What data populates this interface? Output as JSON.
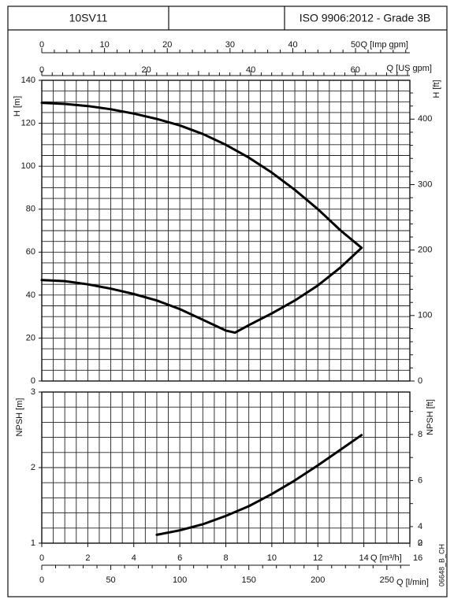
{
  "header": {
    "model": "10SV11",
    "standard": "ISO 9906:2012 - Grade 3B",
    "code": "06648_B_CH"
  },
  "chart_data": [
    {
      "type": "line",
      "panel": "head",
      "top_axis_imp_gpm": {
        "label": "Q [Imp gpm]",
        "tick_values": [
          0,
          10,
          20,
          30,
          40,
          50
        ],
        "tick_labels": [
          "0",
          "10",
          "20",
          "30",
          "40",
          "50"
        ]
      },
      "top_axis_us_gpm": {
        "label": "Q [US gpm]",
        "tick_values": [
          0,
          20,
          40,
          60
        ],
        "tick_labels": [
          "0",
          "20",
          "40",
          "60"
        ]
      },
      "ylabel": "H [m]",
      "ylim": [
        0,
        140
      ],
      "yticks": [
        "0",
        "20",
        "40",
        "60",
        "80",
        "100",
        "120",
        "140"
      ],
      "y2label": "H [ft]",
      "y2lim_ft": [
        0,
        459.3
      ],
      "y2ticks": [
        "0",
        "100",
        "200",
        "300",
        "400"
      ],
      "xlim": [
        0,
        16
      ],
      "grid": true,
      "series": [
        {
          "x": [
            0,
            1,
            2,
            3,
            4,
            5,
            6,
            7,
            8,
            9,
            10,
            11,
            12,
            13,
            13.9
          ],
          "y": [
            129.5,
            129,
            128,
            126.5,
            124.5,
            122,
            119,
            115,
            110,
            104,
            97,
            89,
            80,
            70,
            62
          ]
        },
        {
          "x": [
            0,
            1,
            2,
            3,
            4,
            5,
            6,
            7,
            8,
            8.4,
            9,
            10,
            11,
            12,
            13,
            13.9
          ],
          "y": [
            47,
            46.5,
            45,
            43,
            40.5,
            37.5,
            33.5,
            28.5,
            23.5,
            22.5,
            26,
            31.5,
            37.5,
            44.5,
            53,
            62
          ]
        }
      ]
    },
    {
      "type": "line",
      "panel": "npsh",
      "ylabel": "NPSH [m]",
      "ylim": [
        1,
        3
      ],
      "yticks": [
        "1",
        "2",
        "3"
      ],
      "y2label": "NPSH [ft]",
      "y2lim_ft": [
        3.281,
        9.843
      ],
      "y2ticks": [
        "0",
        "2",
        "4",
        "6",
        "8"
      ],
      "xlabel": "Q [m³/h]",
      "xlim": [
        0,
        16
      ],
      "xticks": [
        "0",
        "2",
        "4",
        "6",
        "8",
        "10",
        "12",
        "14",
        "16"
      ],
      "bottom_axis_l_min": {
        "label": "Q [l/min]",
        "tick_values": [
          0,
          50,
          100,
          150,
          200,
          250
        ],
        "tick_labels": [
          "0",
          "50",
          "100",
          "150",
          "200",
          "250"
        ]
      },
      "grid": true,
      "series": [
        {
          "x": [
            5,
            6,
            7,
            8,
            9,
            10,
            11,
            12,
            13,
            13.9
          ],
          "y": [
            1.11,
            1.17,
            1.25,
            1.36,
            1.49,
            1.65,
            1.83,
            2.03,
            2.24,
            2.43
          ]
        }
      ]
    }
  ]
}
